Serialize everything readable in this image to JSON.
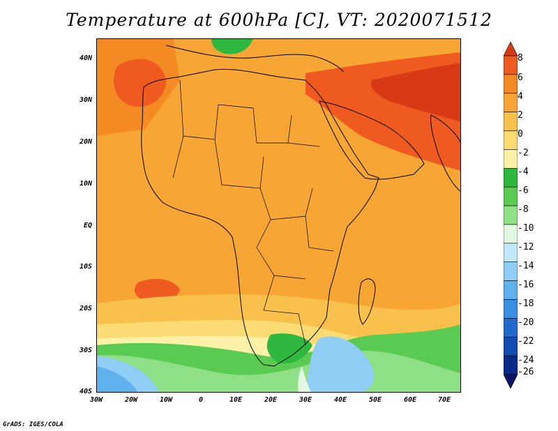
{
  "title": "Temperature at 600hPa [C], VT: 2020071512",
  "credit": "GrADS: IGES/COLA",
  "y_axis_labels": [
    "40N",
    "30N",
    "20N",
    "10N",
    "EQ",
    "10S",
    "20S",
    "30S",
    "40S"
  ],
  "x_axis_labels": [
    "30W",
    "20W",
    "10W",
    "0",
    "10E",
    "20E",
    "30E",
    "40E",
    "50E",
    "60E",
    "70E"
  ],
  "colorbar": {
    "labels": [
      "8",
      "6",
      "4",
      "2",
      "0",
      "-2",
      "-4",
      "-6",
      "-8",
      "-10",
      "-12",
      "-14",
      "-16",
      "-18",
      "-20",
      "-22",
      "-24",
      "-26"
    ],
    "colors": [
      "#d93a16",
      "#ee5a1f",
      "#f48a24",
      "#f7a534",
      "#f9c14c",
      "#fbdc74",
      "#fdf1a8",
      "#2fb840",
      "#5acb52",
      "#8fdf87",
      "#dff8df",
      "#bfe8fb",
      "#8fcdf5",
      "#5fb1ee",
      "#3b8fe0",
      "#2169cc",
      "#134bb0",
      "#0b2a8a",
      "#0a1566"
    ]
  },
  "map_extent": {
    "lon_min": -30,
    "lon_max": 75,
    "lat_min": -40,
    "lat_max": 45
  }
}
